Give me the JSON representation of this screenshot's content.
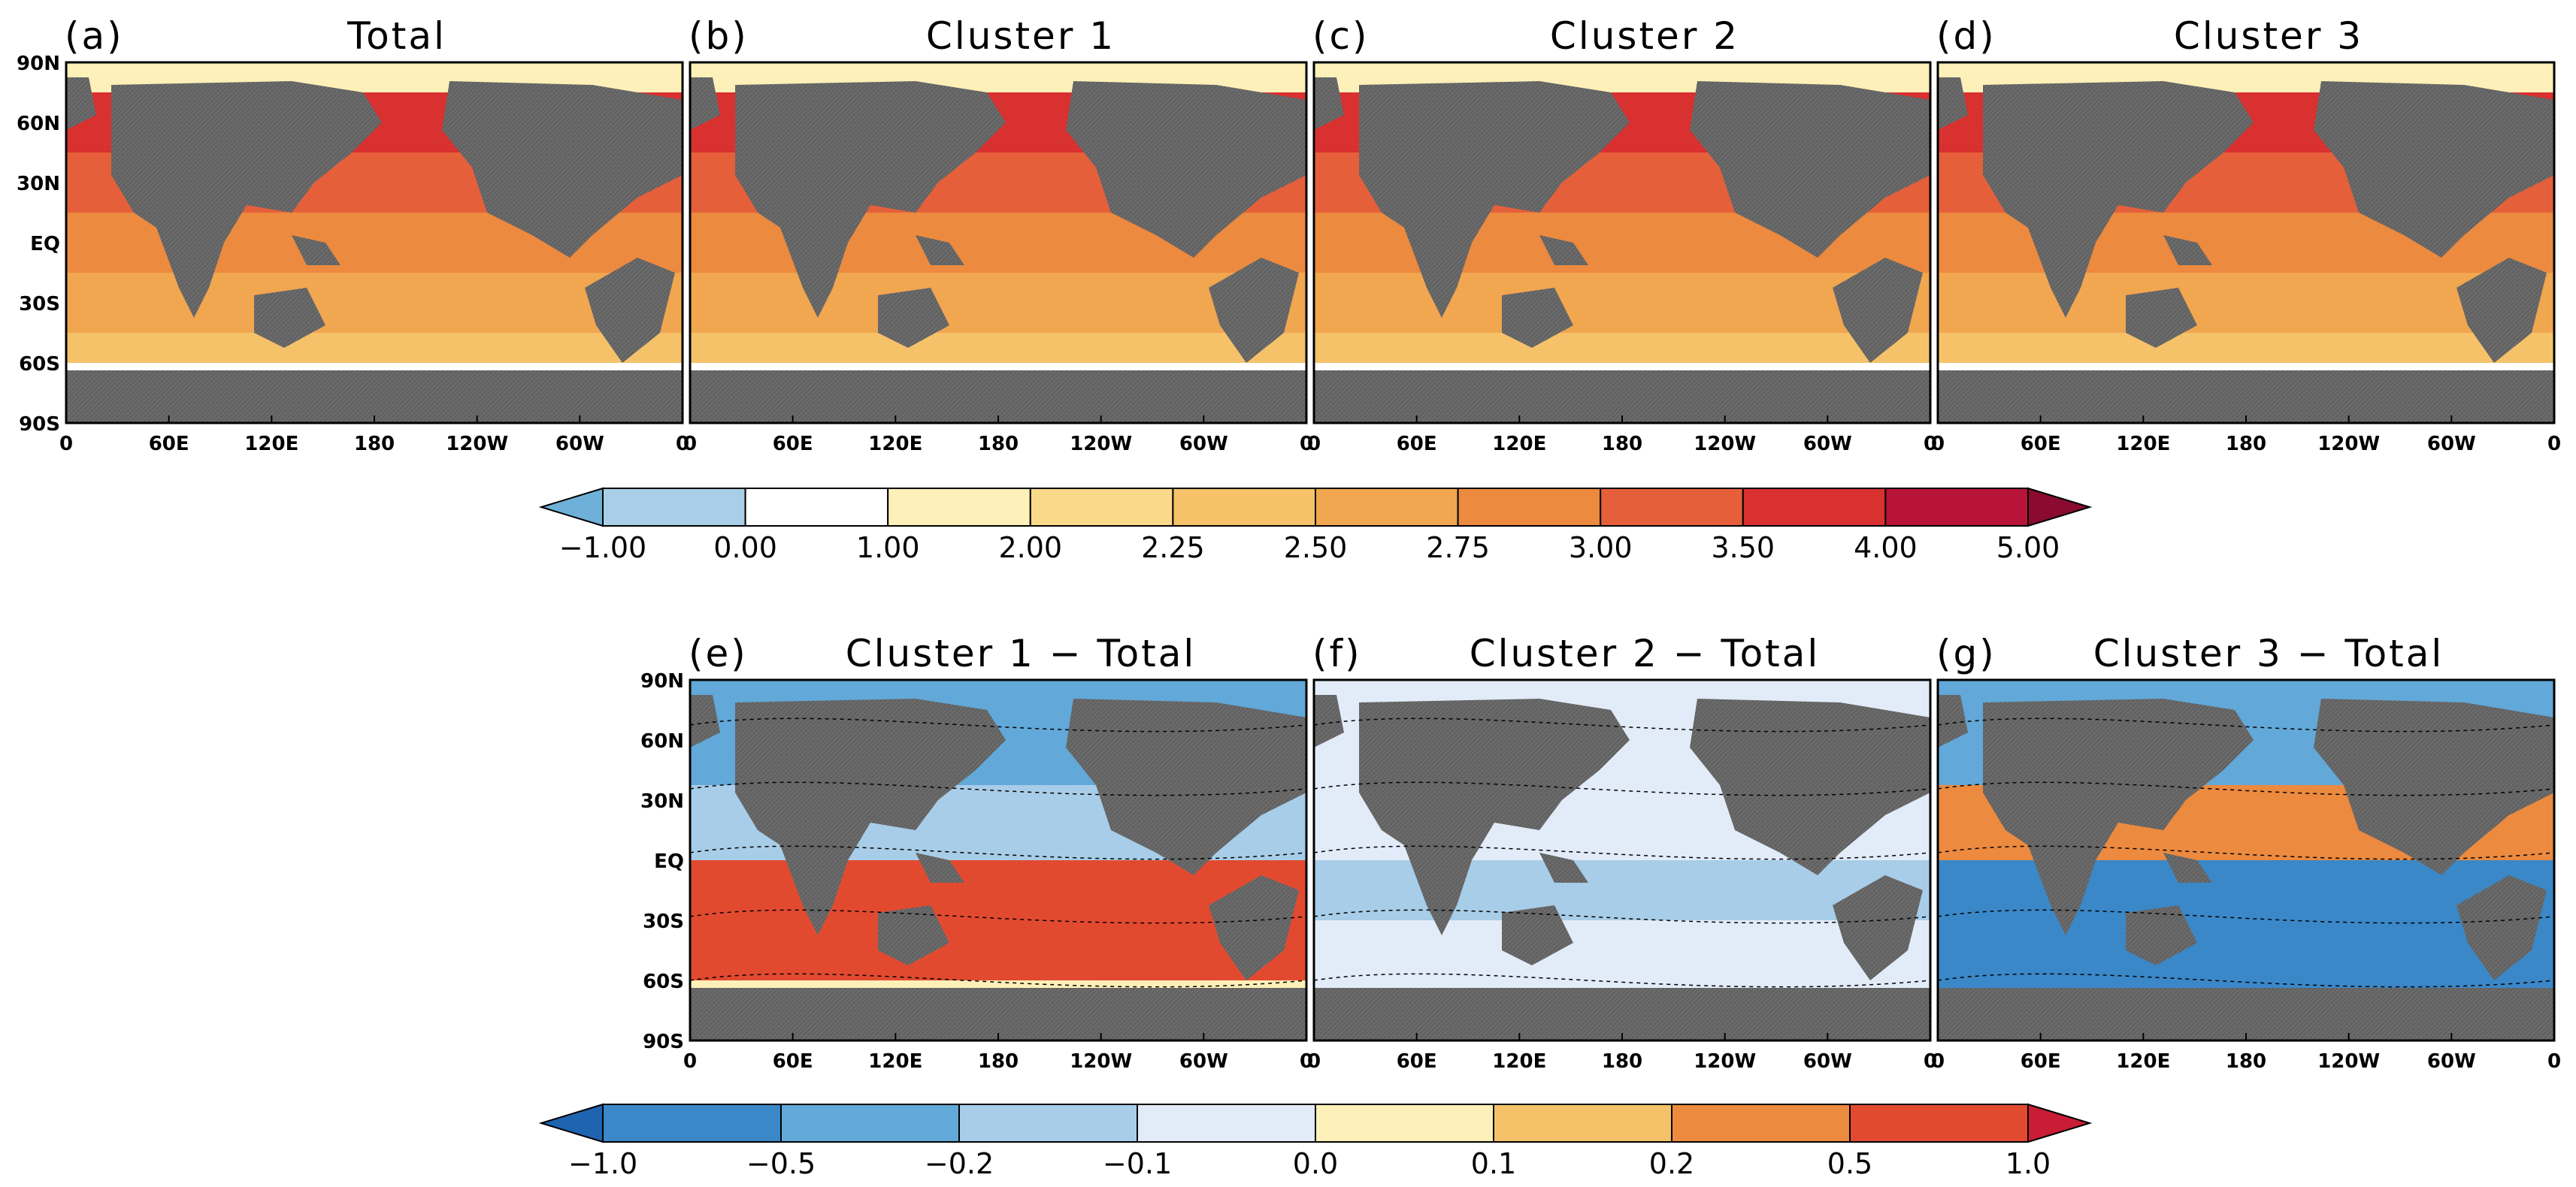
{
  "chart_data": {
    "type": "heatmap",
    "description_units": "map panels of gridded field values (global ocean), shading by colorbar",
    "panels_top": [
      {
        "label": "(a)",
        "title": "Total"
      },
      {
        "label": "(b)",
        "title": "Cluster 1"
      },
      {
        "label": "(c)",
        "title": "Cluster 2"
      },
      {
        "label": "(d)",
        "title": "Cluster 3"
      }
    ],
    "panels_bottom": [
      {
        "label": "(e)",
        "title": "Cluster 1 − Total"
      },
      {
        "label": "(f)",
        "title": "Cluster 2 − Total"
      },
      {
        "label": "(g)",
        "title": "Cluster 3 − Total"
      }
    ],
    "x_ticks": [
      "0",
      "60E",
      "120E",
      "180",
      "120W",
      "60W",
      "0"
    ],
    "y_ticks": [
      "90N",
      "60N",
      "30N",
      "EQ",
      "30S",
      "60S",
      "90S"
    ],
    "colorbar_top": {
      "labels": [
        "−1.00",
        "0.00",
        "1.00",
        "2.00",
        "2.25",
        "2.50",
        "2.75",
        "3.00",
        "3.50",
        "4.00",
        "5.00"
      ],
      "colors": [
        "#6fb0d8",
        "#a9cfe8",
        "#ffffff",
        "#fdf0b8",
        "#f9d98a",
        "#f5c26a",
        "#f1a650",
        "#ec8a3f",
        "#e5603a",
        "#d93030",
        "#b8143a",
        "#8a0a30"
      ]
    },
    "colorbar_bottom": {
      "labels": [
        "−1.0",
        "−0.5",
        "−0.2",
        "−0.1",
        "0.0",
        "0.1",
        "0.2",
        "0.5",
        "1.0"
      ],
      "colors": [
        "#1f64b0",
        "#3a88c8",
        "#62a8d8",
        "#a8cde8",
        "#e2ecf8",
        "#fdf0b8",
        "#f5c26a",
        "#ec8a3f",
        "#e24a30",
        "#c81d35"
      ]
    },
    "colors": {
      "land": "#6b6b6b",
      "antarctic_ocean": "#ffffff"
    }
  }
}
